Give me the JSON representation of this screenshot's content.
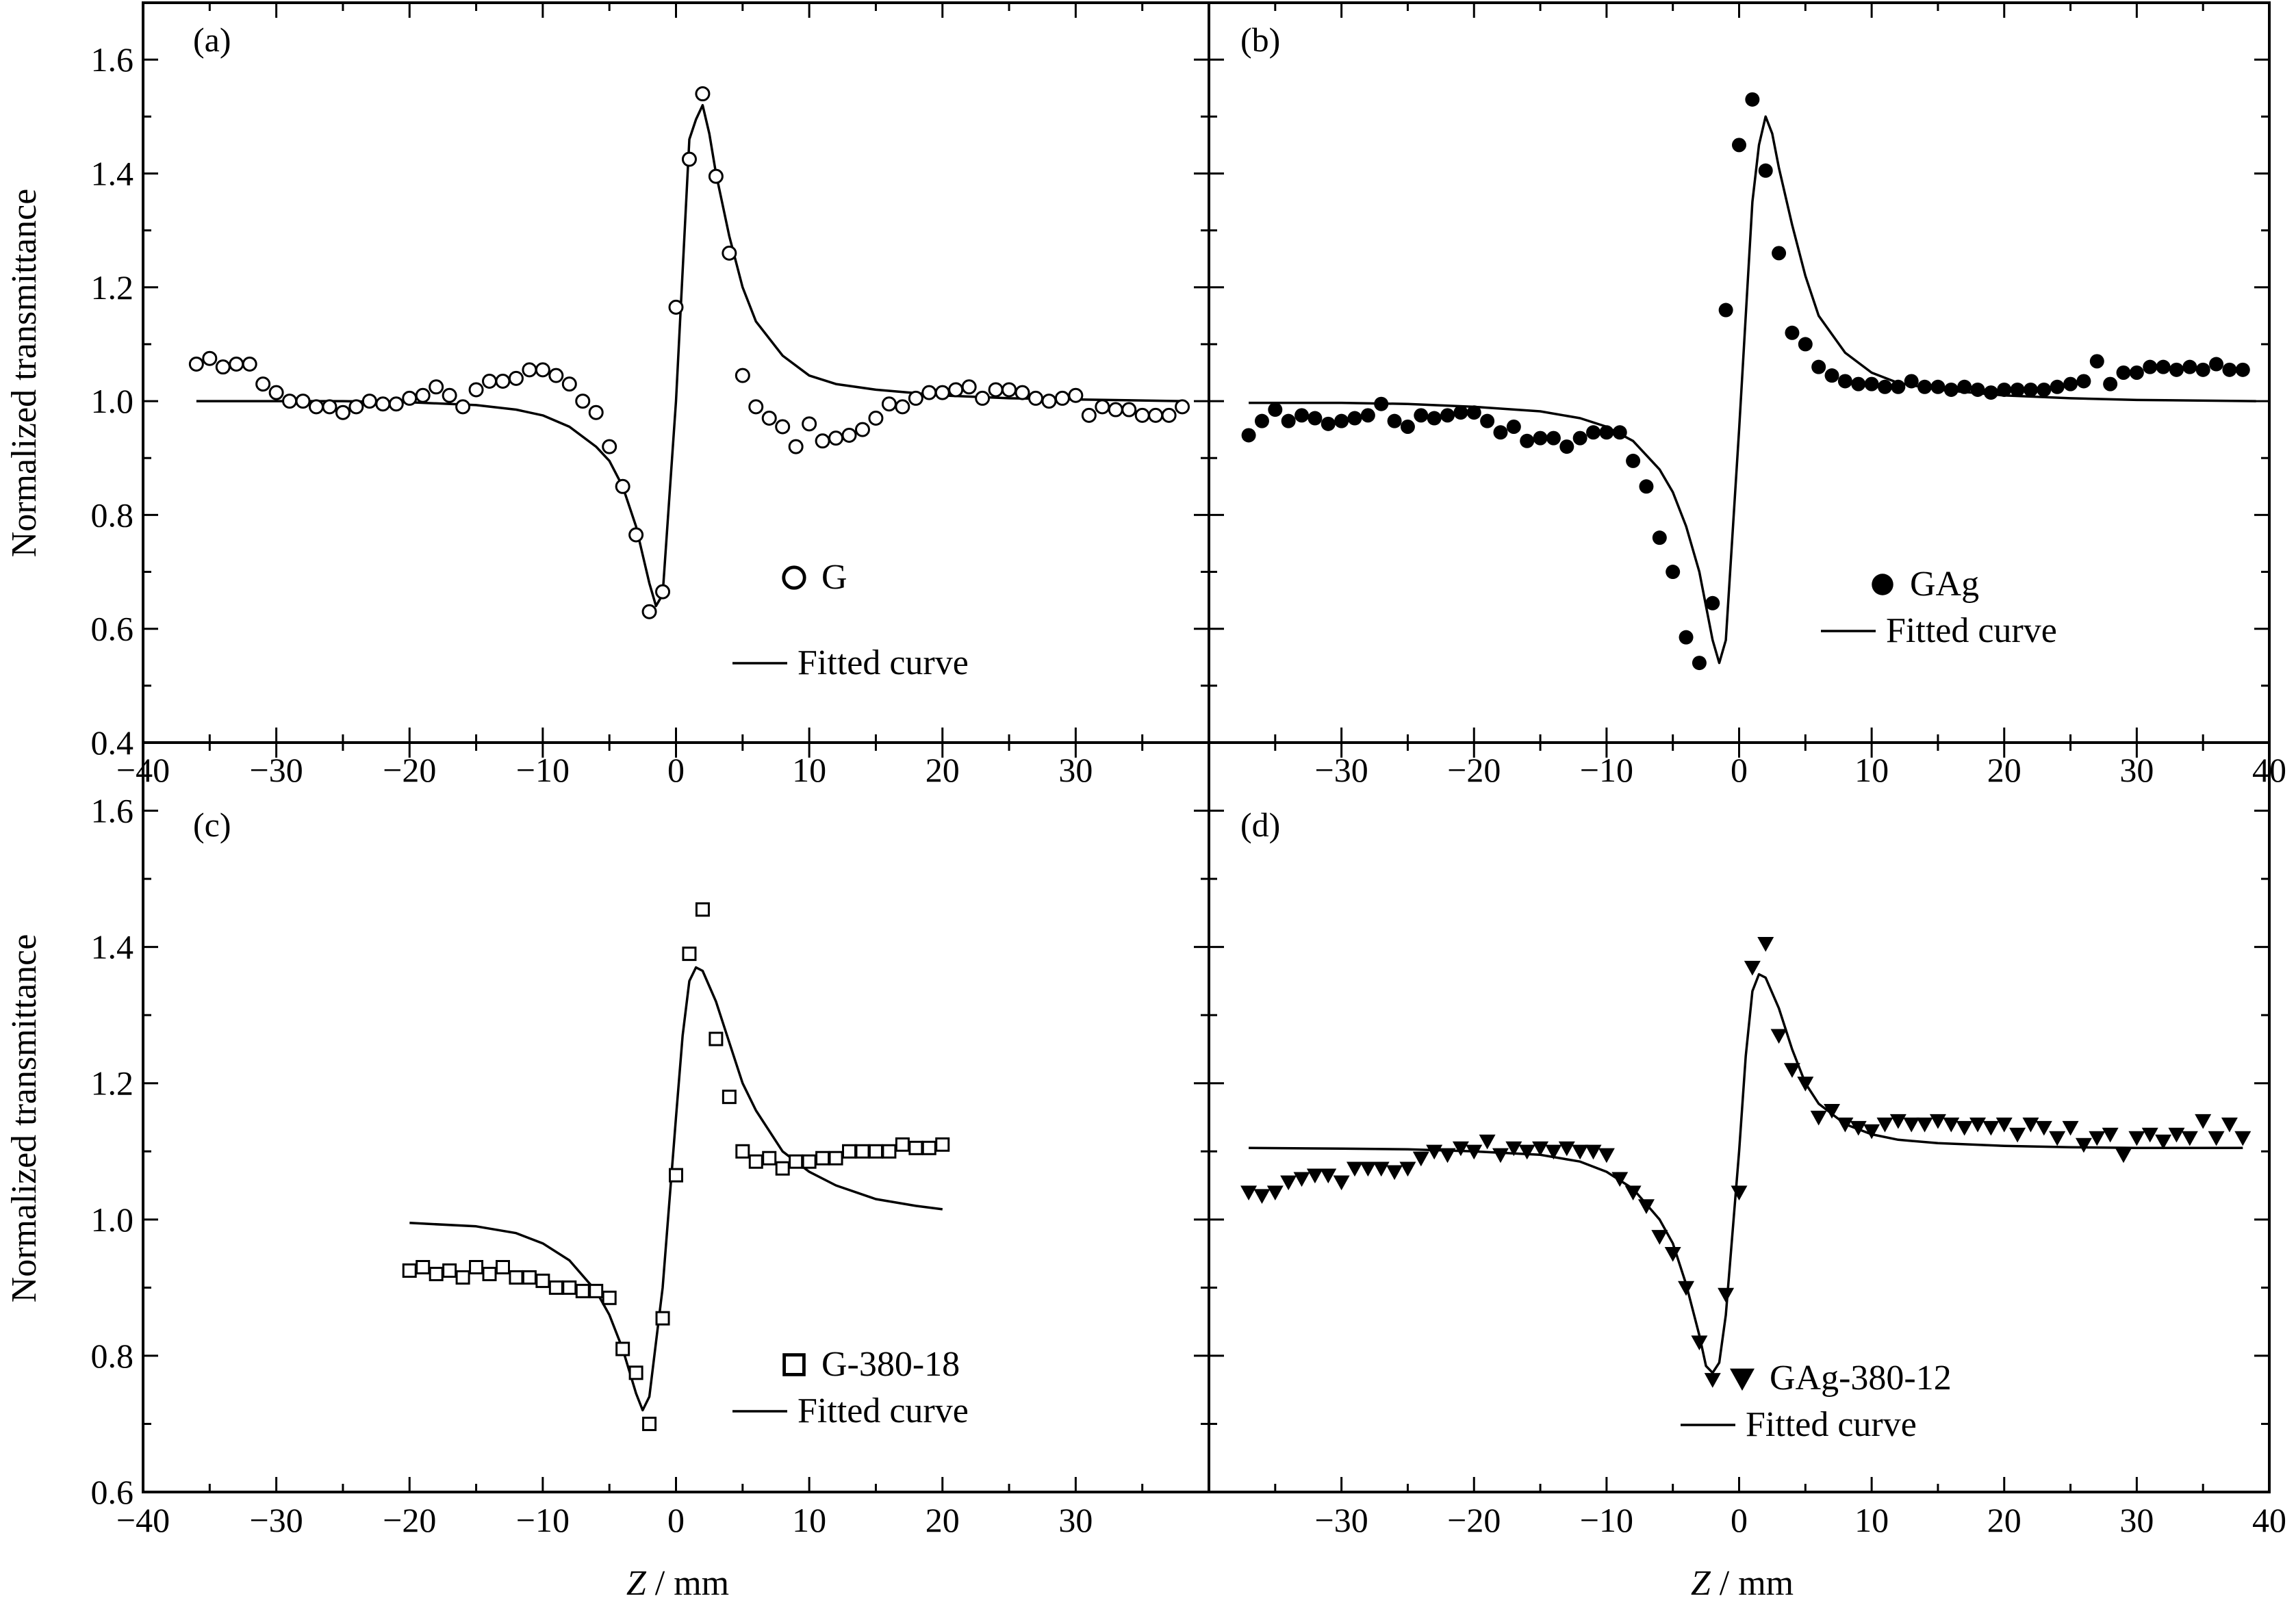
{
  "figure": {
    "ylabel": "Normalized transmittance",
    "xlabel_var": "Z",
    "xlabel_unit": " / mm"
  },
  "chart_data": [
    {
      "id": "a",
      "type": "scatter",
      "panel_label": "(a)",
      "xlim": [
        -40,
        40
      ],
      "ylim": [
        0.4,
        1.7
      ],
      "xticks": [
        -40,
        -30,
        -20,
        -10,
        0,
        10,
        20,
        30
      ],
      "xtick_labels": [
        "−40",
        "−30",
        "−20",
        "−10",
        "0",
        "10",
        "20",
        "30"
      ],
      "yticks": [
        0.4,
        0.6,
        0.8,
        1.0,
        1.2,
        1.4,
        1.6
      ],
      "ytick_labels": [
        "0.4",
        "0.6",
        "0.8",
        "1.0",
        "1.2",
        "1.4",
        "1.6"
      ],
      "legend_position": "lower-right",
      "series": [
        {
          "name": "G",
          "marker": "open-circle",
          "x": [
            -36,
            -35,
            -34,
            -33,
            -32,
            -31,
            -30,
            -29,
            -28,
            -27,
            -26,
            -25,
            -24,
            -23,
            -22,
            -21,
            -20,
            -19,
            -18,
            -17,
            -16,
            -15,
            -14,
            -13,
            -12,
            -11,
            -10,
            -9,
            -8,
            -7,
            -6,
            -5,
            -4,
            -3,
            -2,
            -1,
            0,
            1,
            2,
            3,
            4,
            5,
            6,
            7,
            8,
            9,
            10,
            11,
            12,
            13,
            14,
            15,
            16,
            17,
            18,
            19,
            20,
            21,
            22,
            23,
            24,
            25,
            26,
            27,
            28,
            29,
            30,
            31,
            32,
            33,
            34,
            35,
            36,
            37,
            38
          ],
          "y": [
            1.065,
            1.075,
            1.06,
            1.065,
            1.065,
            1.03,
            1.015,
            1.0,
            1.0,
            0.99,
            0.99,
            0.98,
            0.99,
            1.0,
            0.995,
            0.995,
            1.005,
            1.01,
            1.025,
            1.01,
            0.99,
            1.02,
            1.035,
            1.035,
            1.04,
            1.055,
            1.055,
            1.045,
            1.03,
            1.0,
            0.98,
            0.92,
            0.85,
            0.765,
            0.63,
            0.665,
            1.165,
            1.425,
            1.54,
            1.395,
            1.26,
            1.045,
            0.99,
            0.97,
            0.955,
            0.92,
            0.96,
            0.93,
            0.935,
            0.94,
            0.95,
            0.97,
            0.995,
            0.99,
            1.005,
            1.015,
            1.015,
            1.02,
            1.025,
            1.005,
            1.02,
            1.02,
            1.015,
            1.005,
            1.0,
            1.005,
            1.01,
            0.975,
            0.99,
            0.985,
            0.985,
            0.975,
            0.975,
            0.975,
            0.99
          ]
        },
        {
          "name": "Fitted curve",
          "line": "solid",
          "x": [
            -36,
            -30,
            -25,
            -20,
            -15,
            -12,
            -10,
            -8,
            -6,
            -5,
            -4,
            -3,
            -2.5,
            -2,
            -1.5,
            -1,
            0,
            1,
            1.5,
            2,
            2.5,
            3,
            4,
            5,
            6,
            8,
            10,
            12,
            15,
            20,
            25,
            30,
            38
          ],
          "y": [
            1.0,
            1.0,
            1.0,
            0.998,
            0.993,
            0.985,
            0.975,
            0.955,
            0.92,
            0.895,
            0.85,
            0.78,
            0.73,
            0.68,
            0.64,
            0.66,
            1.0,
            1.46,
            1.495,
            1.52,
            1.47,
            1.4,
            1.29,
            1.2,
            1.14,
            1.08,
            1.045,
            1.03,
            1.02,
            1.01,
            1.005,
            1.003,
            1.0
          ]
        }
      ]
    },
    {
      "id": "b",
      "type": "scatter",
      "panel_label": "(b)",
      "xlim": [
        -40,
        40
      ],
      "ylim": [
        0.4,
        1.7
      ],
      "xticks": [
        -30,
        -20,
        -10,
        0,
        10,
        20,
        30,
        40
      ],
      "xtick_labels": [
        "−30",
        "−20",
        "−10",
        "0",
        "10",
        "20",
        "30",
        "40"
      ],
      "legend_position": "lower-right",
      "series": [
        {
          "name": "GAg",
          "marker": "filled-circle",
          "x": [
            -37,
            -36,
            -35,
            -34,
            -33,
            -32,
            -31,
            -30,
            -29,
            -28,
            -27,
            -26,
            -25,
            -24,
            -23,
            -22,
            -21,
            -20,
            -19,
            -18,
            -17,
            -16,
            -15,
            -14,
            -13,
            -12,
            -11,
            -10,
            -9,
            -8,
            -7,
            -6,
            -5,
            -4,
            -3,
            -2,
            -1,
            0,
            1,
            2,
            3,
            4,
            5,
            6,
            7,
            8,
            9,
            10,
            11,
            12,
            13,
            14,
            15,
            16,
            17,
            18,
            19,
            20,
            21,
            22,
            23,
            24,
            25,
            26,
            27,
            28,
            29,
            30,
            31,
            32,
            33,
            34,
            35,
            36,
            37,
            38
          ],
          "y": [
            0.94,
            0.965,
            0.985,
            0.965,
            0.975,
            0.97,
            0.96,
            0.965,
            0.97,
            0.975,
            0.995,
            0.965,
            0.955,
            0.975,
            0.97,
            0.975,
            0.98,
            0.98,
            0.965,
            0.945,
            0.955,
            0.93,
            0.935,
            0.935,
            0.92,
            0.935,
            0.945,
            0.945,
            0.945,
            0.895,
            0.85,
            0.76,
            0.7,
            0.585,
            0.54,
            0.645,
            1.16,
            1.45,
            1.53,
            1.405,
            1.26,
            1.12,
            1.1,
            1.06,
            1.045,
            1.035,
            1.03,
            1.03,
            1.025,
            1.025,
            1.035,
            1.025,
            1.025,
            1.02,
            1.025,
            1.02,
            1.015,
            1.02,
            1.02,
            1.02,
            1.02,
            1.025,
            1.03,
            1.035,
            1.07,
            1.03,
            1.05,
            1.05,
            1.06,
            1.06,
            1.055,
            1.06,
            1.055,
            1.065,
            1.055,
            1.055
          ]
        },
        {
          "name": "Fitted curve",
          "line": "solid",
          "x": [
            -37,
            -30,
            -25,
            -20,
            -15,
            -12,
            -10,
            -8,
            -6,
            -5,
            -4,
            -3,
            -2.5,
            -2,
            -1.5,
            -1,
            0,
            1,
            1.5,
            2,
            2.5,
            3,
            4,
            5,
            6,
            8,
            10,
            12,
            15,
            20,
            25,
            30,
            39
          ],
          "y": [
            0.997,
            0.997,
            0.995,
            0.99,
            0.982,
            0.97,
            0.955,
            0.93,
            0.88,
            0.84,
            0.78,
            0.7,
            0.64,
            0.58,
            0.54,
            0.58,
            0.95,
            1.35,
            1.45,
            1.5,
            1.47,
            1.41,
            1.31,
            1.22,
            1.15,
            1.085,
            1.05,
            1.032,
            1.02,
            1.01,
            1.005,
            1.002,
            1.0
          ]
        }
      ]
    },
    {
      "id": "c",
      "type": "scatter",
      "panel_label": "(c)",
      "xlim": [
        -40,
        40
      ],
      "ylim": [
        0.6,
        1.7
      ],
      "xticks": [
        -40,
        -30,
        -20,
        -10,
        0,
        10,
        20,
        30
      ],
      "xtick_labels": [
        "−40",
        "−30",
        "−20",
        "−10",
        "0",
        "10",
        "20",
        "30"
      ],
      "yticks": [
        0.6,
        0.8,
        1.0,
        1.2,
        1.4,
        1.6
      ],
      "ytick_labels": [
        "0.6",
        "0.8",
        "1.0",
        "1.2",
        "1.4",
        "1.6"
      ],
      "legend_position": "lower-right",
      "series": [
        {
          "name": "G-380-18",
          "marker": "open-square",
          "x": [
            -20,
            -19,
            -18,
            -17,
            -16,
            -15,
            -14,
            -13,
            -12,
            -11,
            -10,
            -9,
            -8,
            -7,
            -6,
            -5,
            -4,
            -3,
            -2,
            -1,
            0,
            1,
            2,
            3,
            4,
            5,
            6,
            7,
            8,
            9,
            10,
            11,
            12,
            13,
            14,
            15,
            16,
            17,
            18,
            19,
            20
          ],
          "y": [
            0.925,
            0.93,
            0.92,
            0.925,
            0.915,
            0.93,
            0.92,
            0.93,
            0.915,
            0.915,
            0.91,
            0.9,
            0.9,
            0.895,
            0.895,
            0.885,
            0.81,
            0.775,
            0.7,
            0.855,
            1.065,
            1.39,
            1.455,
            1.265,
            1.18,
            1.1,
            1.085,
            1.09,
            1.075,
            1.085,
            1.085,
            1.09,
            1.09,
            1.1,
            1.1,
            1.1,
            1.1,
            1.11,
            1.105,
            1.105,
            1.11
          ]
        },
        {
          "name": "Fitted curve",
          "line": "solid",
          "x": [
            -20,
            -15,
            -12,
            -10,
            -8,
            -6,
            -5,
            -4,
            -3,
            -2.5,
            -2,
            -1,
            0,
            0.5,
            1,
            1.5,
            2,
            3,
            4,
            5,
            6,
            8,
            10,
            12,
            15,
            18,
            20
          ],
          "y": [
            0.995,
            0.99,
            0.98,
            0.965,
            0.94,
            0.895,
            0.86,
            0.81,
            0.745,
            0.72,
            0.74,
            0.9,
            1.15,
            1.27,
            1.35,
            1.37,
            1.365,
            1.32,
            1.26,
            1.2,
            1.16,
            1.1,
            1.07,
            1.05,
            1.03,
            1.02,
            1.015
          ]
        }
      ]
    },
    {
      "id": "d",
      "type": "scatter",
      "panel_label": "(d)",
      "xlim": [
        -40,
        40
      ],
      "ylim": [
        0.6,
        1.7
      ],
      "xticks": [
        -30,
        -20,
        -10,
        0,
        10,
        20,
        30,
        40
      ],
      "xtick_labels": [
        "−30",
        "−20",
        "−10",
        "0",
        "10",
        "20",
        "30",
        "40"
      ],
      "legend_position": "lower-right",
      "series": [
        {
          "name": "GAg-380-12",
          "marker": "filled-triangle-down",
          "x": [
            -37,
            -36,
            -35,
            -34,
            -33,
            -32,
            -31,
            -30,
            -29,
            -28,
            -27,
            -26,
            -25,
            -24,
            -23,
            -22,
            -21,
            -20,
            -19,
            -18,
            -17,
            -16,
            -15,
            -14,
            -13,
            -12,
            -11,
            -10,
            -9,
            -8,
            -7,
            -6,
            -5,
            -4,
            -3,
            -2,
            -1,
            0,
            1,
            2,
            3,
            4,
            5,
            6,
            7,
            8,
            9,
            10,
            11,
            12,
            13,
            14,
            15,
            16,
            17,
            18,
            19,
            20,
            21,
            22,
            23,
            24,
            25,
            26,
            27,
            28,
            29,
            30,
            31,
            32,
            33,
            34,
            35,
            36,
            37,
            38
          ],
          "y": [
            1.04,
            1.035,
            1.04,
            1.055,
            1.06,
            1.065,
            1.065,
            1.055,
            1.075,
            1.075,
            1.075,
            1.07,
            1.075,
            1.09,
            1.1,
            1.095,
            1.105,
            1.1,
            1.115,
            1.095,
            1.105,
            1.1,
            1.105,
            1.1,
            1.105,
            1.1,
            1.1,
            1.095,
            1.06,
            1.04,
            1.02,
            0.975,
            0.95,
            0.9,
            0.82,
            0.765,
            0.89,
            1.04,
            1.37,
            1.405,
            1.27,
            1.22,
            1.2,
            1.15,
            1.16,
            1.14,
            1.135,
            1.13,
            1.14,
            1.145,
            1.14,
            1.14,
            1.145,
            1.14,
            1.135,
            1.14,
            1.135,
            1.14,
            1.125,
            1.14,
            1.135,
            1.12,
            1.135,
            1.11,
            1.12,
            1.125,
            1.095,
            1.12,
            1.125,
            1.115,
            1.125,
            1.12,
            1.145,
            1.12,
            1.14,
            1.12
          ]
        },
        {
          "name": "Fitted curve",
          "line": "solid",
          "x": [
            -37,
            -30,
            -25,
            -20,
            -15,
            -12,
            -10,
            -8,
            -6,
            -5,
            -4,
            -3,
            -2.5,
            -2,
            -1.5,
            -1,
            0,
            0.5,
            1,
            1.5,
            2,
            3,
            4,
            5,
            6,
            8,
            10,
            12,
            15,
            20,
            25,
            30,
            38
          ],
          "y": [
            1.105,
            1.104,
            1.103,
            1.1,
            1.095,
            1.085,
            1.07,
            1.045,
            1.0,
            0.965,
            0.905,
            0.83,
            0.785,
            0.775,
            0.79,
            0.86,
            1.1,
            1.24,
            1.335,
            1.36,
            1.355,
            1.31,
            1.25,
            1.2,
            1.17,
            1.14,
            1.125,
            1.117,
            1.112,
            1.108,
            1.106,
            1.105,
            1.105
          ]
        }
      ]
    }
  ]
}
